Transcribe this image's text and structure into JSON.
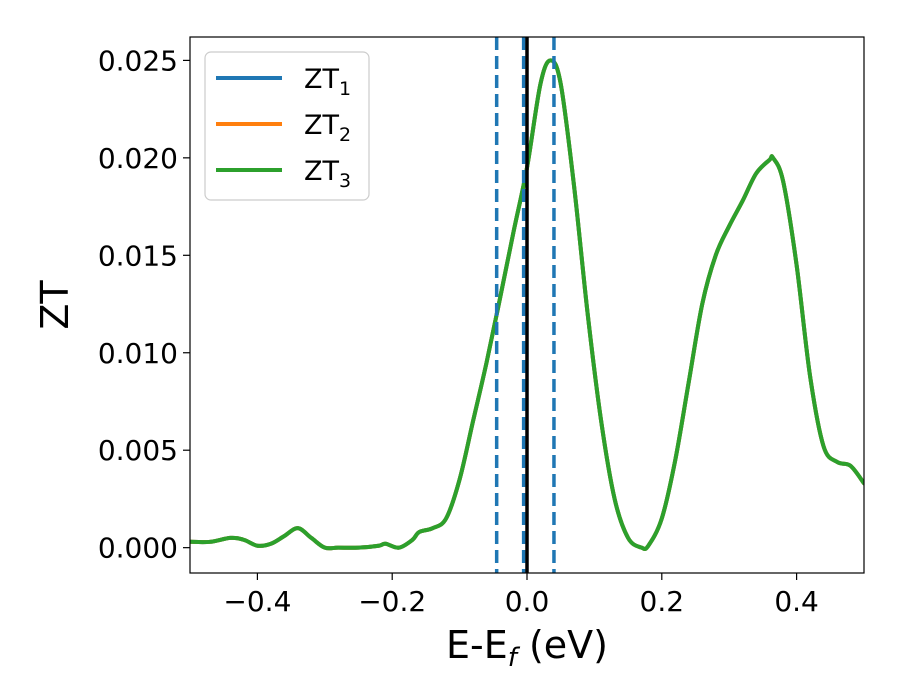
{
  "chart_data": {
    "type": "line",
    "xlabel": "E-E",
    "xlabel_sub": "f",
    "xlabel_unit": " (eV)",
    "ylabel": "ZT",
    "xlim": [
      -0.5,
      0.5
    ],
    "ylim": [
      -0.0013,
      0.0262
    ],
    "x_ticks": [
      -0.4,
      -0.2,
      0.0,
      0.2,
      0.4
    ],
    "x_tick_labels": [
      "−0.4",
      "−0.2",
      "0.0",
      "0.2",
      "0.4"
    ],
    "y_ticks": [
      0.0,
      0.005,
      0.01,
      0.015,
      0.02,
      0.025
    ],
    "y_tick_labels": [
      "0.000",
      "0.005",
      "0.010",
      "0.015",
      "0.020",
      "0.025"
    ],
    "grid": false,
    "legend_position": "top-left",
    "legend": [
      {
        "base": "ZT",
        "sub": "1",
        "color": "#1f77b4"
      },
      {
        "base": "ZT",
        "sub": "2",
        "color": "#ff7f0e"
      },
      {
        "base": "ZT",
        "sub": "3",
        "color": "#2ca02c"
      }
    ],
    "x": [
      -0.5,
      -0.47,
      -0.44,
      -0.42,
      -0.4,
      -0.38,
      -0.36,
      -0.34,
      -0.32,
      -0.3,
      -0.28,
      -0.25,
      -0.22,
      -0.21,
      -0.19,
      -0.17,
      -0.16,
      -0.14,
      -0.12,
      -0.1,
      -0.08,
      -0.06,
      -0.04,
      -0.02,
      0.0,
      0.02,
      0.035,
      0.05,
      0.07,
      0.09,
      0.11,
      0.13,
      0.15,
      0.17,
      0.18,
      0.2,
      0.22,
      0.24,
      0.26,
      0.28,
      0.3,
      0.32,
      0.34,
      0.36,
      0.365,
      0.38,
      0.4,
      0.42,
      0.44,
      0.46,
      0.48,
      0.5
    ],
    "series": [
      {
        "values": [
          0.0003,
          0.0003,
          0.0005,
          0.0004,
          0.0001,
          0.0002,
          0.0006,
          0.001,
          0.0005,
          0.0,
          0.0,
          0.0,
          0.0001,
          0.0002,
          0.0,
          0.0004,
          0.0008,
          0.001,
          0.0015,
          0.0035,
          0.0065,
          0.0095,
          0.0128,
          0.0162,
          0.0195,
          0.0238,
          0.025,
          0.0238,
          0.0185,
          0.012,
          0.0065,
          0.0025,
          0.0005,
          0.0,
          0.0001,
          0.0015,
          0.0045,
          0.0085,
          0.0125,
          0.015,
          0.0165,
          0.0178,
          0.0192,
          0.0199,
          0.02,
          0.0188,
          0.0145,
          0.0088,
          0.0052,
          0.0044,
          0.0042,
          0.0033
        ],
        "color": "#1f77b4"
      },
      {
        "values": [
          0.0003,
          0.0003,
          0.0005,
          0.0004,
          0.0001,
          0.0002,
          0.0006,
          0.001,
          0.0005,
          0.0,
          0.0,
          0.0,
          0.0001,
          0.0002,
          0.0,
          0.0004,
          0.0008,
          0.001,
          0.0015,
          0.0035,
          0.0065,
          0.0095,
          0.0128,
          0.0162,
          0.0195,
          0.0238,
          0.025,
          0.0238,
          0.0185,
          0.012,
          0.0065,
          0.0025,
          0.0005,
          0.0,
          0.0001,
          0.0015,
          0.0045,
          0.0085,
          0.0125,
          0.015,
          0.0165,
          0.0178,
          0.0192,
          0.0199,
          0.02,
          0.0188,
          0.0145,
          0.0088,
          0.0052,
          0.0044,
          0.0042,
          0.0033
        ],
        "color": "#ff7f0e"
      },
      {
        "values": [
          0.0003,
          0.0003,
          0.0005,
          0.0004,
          0.0001,
          0.0002,
          0.0006,
          0.001,
          0.0005,
          0.0,
          0.0,
          0.0,
          0.0001,
          0.0002,
          0.0,
          0.0004,
          0.0008,
          0.001,
          0.0015,
          0.0035,
          0.0065,
          0.0095,
          0.0128,
          0.0162,
          0.0195,
          0.0238,
          0.025,
          0.0238,
          0.0185,
          0.012,
          0.0065,
          0.0025,
          0.0005,
          0.0,
          0.0001,
          0.0015,
          0.0045,
          0.0085,
          0.0125,
          0.015,
          0.0165,
          0.0178,
          0.0192,
          0.0199,
          0.02,
          0.0188,
          0.0145,
          0.0088,
          0.0052,
          0.0044,
          0.0042,
          0.0033
        ],
        "color": "#2ca02c"
      }
    ],
    "vlines": [
      {
        "x": -0.045,
        "style": "dashed",
        "color": "#1f77b4"
      },
      {
        "x": -0.005,
        "style": "dashed",
        "color": "#1f77b4"
      },
      {
        "x": 0.04,
        "style": "dashed",
        "color": "#1f77b4"
      },
      {
        "x": 0.0,
        "style": "solid",
        "color": "#000000"
      }
    ]
  }
}
